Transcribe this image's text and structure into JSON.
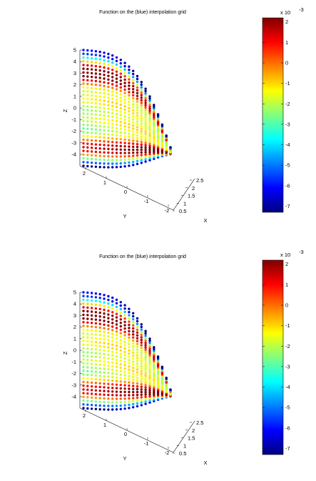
{
  "chart_data": [
    {
      "type": "scatter3d",
      "title": "Function on the (blue) interpolation grid",
      "xlabel": "X",
      "ylabel": "Y",
      "zlabel": "Z",
      "x_ticks": [
        "0.5",
        "1",
        "1.5",
        "2",
        "2.5"
      ],
      "y_ticks": [
        "-2",
        "-1",
        "0",
        "1",
        "2"
      ],
      "z_ticks": [
        "-4",
        "-3",
        "-2",
        "-1",
        "0",
        "1",
        "2",
        "3",
        "4",
        "5"
      ],
      "colorbar": {
        "multiplier": "x 10",
        "exponent": "-3",
        "range": [
          -7.3,
          2.2
        ],
        "ticks": [
          "2",
          "1",
          "0",
          "-1",
          "-2",
          "-3",
          "-4",
          "-5",
          "-6",
          "-7"
        ]
      }
    },
    {
      "type": "scatter3d",
      "title": "Function on the (blue) interpolation grid",
      "xlabel": "X",
      "ylabel": "Y",
      "zlabel": "Z",
      "x_ticks": [
        "0.5",
        "1",
        "1.5",
        "2",
        "2.5"
      ],
      "y_ticks": [
        "-2",
        "-1",
        "0",
        "1",
        "2"
      ],
      "z_ticks": [
        "-4",
        "-3",
        "-2",
        "-1",
        "0",
        "1",
        "2",
        "3",
        "4",
        "5"
      ],
      "colorbar": {
        "multiplier": "x 10",
        "exponent": "-3",
        "range": [
          -7.3,
          2.2
        ],
        "ticks": [
          "2",
          "1",
          "0",
          "-1",
          "-2",
          "-3",
          "-4",
          "-5",
          "-6",
          "-7"
        ]
      }
    }
  ]
}
